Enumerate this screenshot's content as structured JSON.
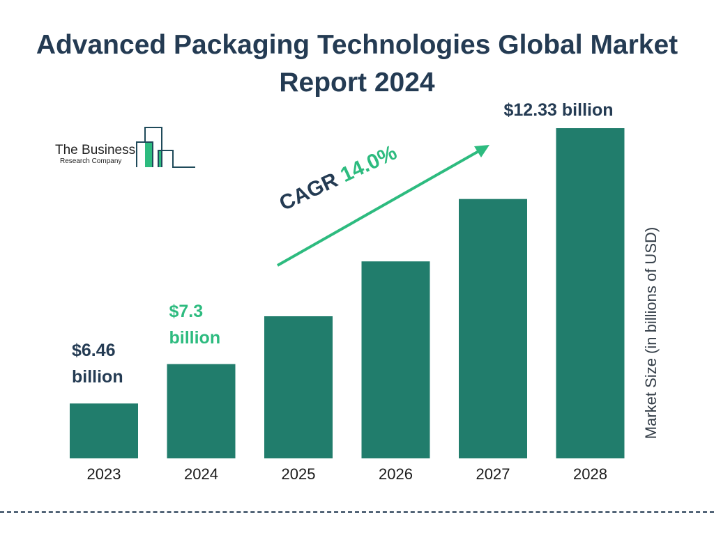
{
  "chart_data": {
    "type": "bar",
    "title": "Advanced Packaging Technologies Global Market Report 2024",
    "ylabel": "Market Size (in billions of USD)",
    "categories": [
      "2023",
      "2024",
      "2025",
      "2026",
      "2027",
      "2028"
    ],
    "values": [
      6.46,
      7.3,
      8.32,
      9.49,
      10.82,
      12.33
    ],
    "data_labels": [
      "$6.46 billion",
      "$7.3 billion",
      "",
      "",
      "",
      "$12.33 billion"
    ],
    "annotation": {
      "cagr_label": "CAGR",
      "cagr_value": "14.0%"
    },
    "grid": false,
    "colors": {
      "bar": "#217d6c",
      "title": "#243b53",
      "accent": "#2dbb7f"
    }
  },
  "logo": {
    "line1": "The Business",
    "line2": "Research Company"
  }
}
